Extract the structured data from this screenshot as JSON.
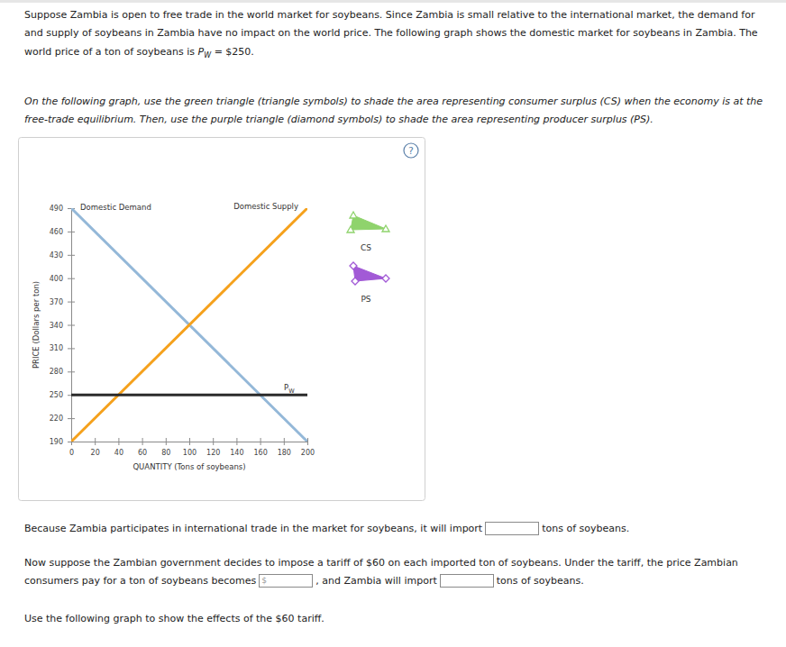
{
  "document": {
    "intro_lines": [
      "Suppose Zambia is open to free trade in the world market for soybeans. Since Zambia is small relative to the international market, the demand for",
      "and supply of soybeans in Zambia have no impact on the world price. The following graph shows the domestic market for soybeans in Zambia. The",
      "world price of a ton of soybeans is"
    ],
    "world_price_symbol": "PW",
    "world_price_text": "= $250.",
    "instruction_lines": [
      "On the following graph, use the green triangle (triangle symbols) to shade the area representing consumer surplus (CS) when the economy is at the",
      "free-trade equilibrium. Then, use the purple triangle (diamond symbols) to shade the area representing producer surplus (PS)."
    ],
    "help": "?",
    "tools": [
      "CS",
      "PS"
    ],
    "question1": [
      "Because Zambia participates in international trade in the market for soybeans, it will import",
      "tons of soybeans."
    ],
    "question2_line1": "Now suppose the Zambian government decides to impose a tariff of $60 on each imported ton of soybeans. Under the tariff, the price Zambian",
    "question2_line2": [
      "consumers pay for a ton of soybeans becomes",
      ", and Zambia will import",
      "tons of soybeans."
    ],
    "currency_prefix": "$",
    "final_line": "Use the following graph to show the effects of the $60 tariff."
  },
  "chart_data": {
    "type": "line",
    "xlabel": "QUANTITY (Tons of soybeans)",
    "ylabel": "PRICE (Dollars per ton)",
    "x": [
      0,
      200
    ],
    "xlim": [
      0,
      200
    ],
    "xticks": [
      0,
      20,
      40,
      60,
      80,
      100,
      120,
      140,
      160,
      180,
      200
    ],
    "ylim": [
      190,
      490
    ],
    "yticks": [
      190,
      220,
      250,
      280,
      310,
      340,
      370,
      400,
      430,
      460,
      490
    ],
    "grid": false,
    "series": [
      {
        "name": "Domestic Demand",
        "color": "#94b8d8",
        "values": [
          490,
          190
        ]
      },
      {
        "name": "Domestic Supply",
        "color": "#f5a11c",
        "values": [
          190,
          490
        ]
      },
      {
        "name": "PW",
        "color": "#2b2b2b",
        "values": [
          250,
          250
        ]
      }
    ]
  }
}
